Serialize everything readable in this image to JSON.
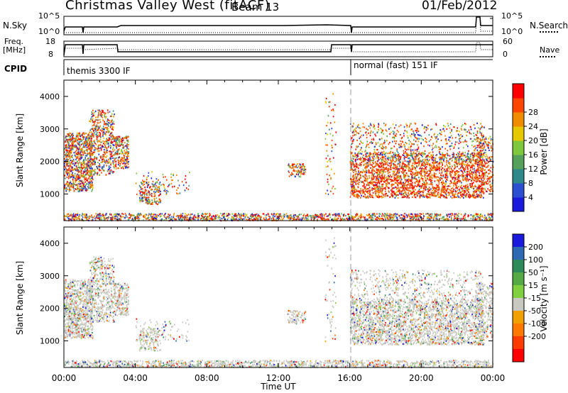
{
  "header": {
    "station": "Christmas Valley West (fitACF)",
    "beam": "Beam 13",
    "date": "01/Feb/2012"
  },
  "status_panels": {
    "nsky_label": "N.Sky",
    "nsearch_label": "N.Search",
    "freq_label_line1": "Freq.",
    "freq_label_line2": "[MHz]",
    "nave_label": "Nave",
    "cpid_label": "CPID",
    "nsky_ticks": [
      "10^5",
      "10^0"
    ],
    "nsearch_ticks": [
      "10^5",
      "10^0"
    ],
    "freq_ticks": [
      "18",
      "8"
    ],
    "nave_ticks": [
      "60",
      "0"
    ],
    "cpid_segments": [
      {
        "label": "themis 3300 IF",
        "start_hour": 0.0,
        "end_hour": 16.0
      },
      {
        "label": "normal (fast) 151 IF",
        "start_hour": 16.0,
        "end_hour": 24.0
      }
    ]
  },
  "chart_data": [
    {
      "type": "heatmap",
      "panel": "power",
      "xlabel": "",
      "ylabel": "Slant Range [km]",
      "xlim": [
        0,
        24
      ],
      "ylim": [
        180,
        4500
      ],
      "x_tick_labels": [
        "00:00",
        "04:00",
        "08:00",
        "12:00",
        "16:00",
        "20:00",
        "00:00"
      ],
      "y_ticks": [
        1000,
        2000,
        3000,
        4000
      ],
      "colorbar_label": "Power [dB]",
      "colorbar_ticks": [
        "4",
        "8",
        "12",
        "16",
        "20",
        "24",
        "28"
      ],
      "colorbar_colors": [
        "#1a1adc",
        "#2c4fd2",
        "#2e8a8a",
        "#55a05a",
        "#7dc83c",
        "#e6c800",
        "#f08c00",
        "#ff4600",
        "#ff0000"
      ],
      "mode_change_hour": 16.0
    },
    {
      "type": "heatmap",
      "panel": "velocity",
      "xlabel": "Time UT",
      "ylabel": "Slant Range [km]",
      "xlim": [
        0,
        24
      ],
      "ylim": [
        180,
        4500
      ],
      "x_tick_labels": [
        "00:00",
        "04:00",
        "08:00",
        "12:00",
        "16:00",
        "20:00",
        "00:00"
      ],
      "y_ticks": [
        1000,
        2000,
        3000,
        4000
      ],
      "colorbar_label": "Velocity [m s⁻¹]",
      "colorbar_ticks": [
        "200",
        "100",
        "50",
        "15",
        "-15",
        "-50",
        "-100",
        "-200"
      ],
      "colorbar_colors": [
        "#1a1adc",
        "#2e6ab4",
        "#2e8a5a",
        "#55aa46",
        "#80d040",
        "#c8c8c0",
        "#f0a000",
        "#ff7800",
        "#ff3c00",
        "#ff0000"
      ],
      "mode_change_hour": 16.0
    }
  ]
}
